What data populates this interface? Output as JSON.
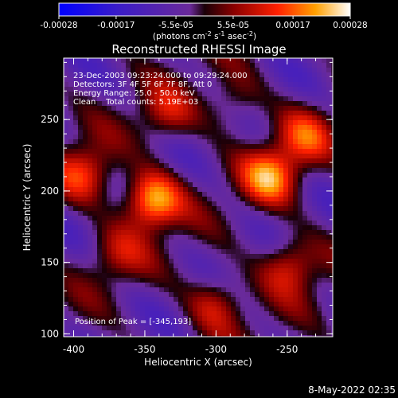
{
  "chart_data": {
    "type": "heatmap",
    "title": "Reconstructed RHESSI Image",
    "xlabel": "Heliocentric X (arcsec)",
    "ylabel": "Heliocentric Y (arcsec)",
    "xlim": [
      -407,
      -218
    ],
    "ylim": [
      98,
      293
    ],
    "xticks": [
      -400,
      -350,
      -300,
      -250
    ],
    "yticks": [
      100,
      150,
      200,
      250
    ],
    "colorbar": {
      "ticks": [
        "-0.00028",
        "-0.00017",
        "-5.5e-05",
        "5.5e-05",
        "0.00017",
        "0.00028"
      ],
      "tick_values": [
        -0.00028,
        -0.00017,
        -5.5e-05,
        5.5e-05,
        0.00017,
        0.00028
      ],
      "unit_prefix": "(photons cm",
      "unit_sup1": "-2",
      "unit_mid1": " s",
      "unit_sup2": "-1",
      "unit_mid2": " asec",
      "unit_sup3": "-2",
      "unit_suffix": ")",
      "range": [
        -0.00028,
        0.00028
      ]
    },
    "annotations": [
      "23-Dec-2003 09:23:24.000 to 09:29:24.000",
      "Detectors: 3F 4F 5F 6F 7F 8F, Att 0",
      "Energy Range: 25.0 - 50.0 keV",
      "Clean    Total counts: 5.19E+03"
    ],
    "peak_label": "Position of Peak = [-345,193]",
    "peak": [
      -345,
      193
    ],
    "sources": [
      {
        "x": -345,
        "y": 193,
        "value": 0.00028
      },
      {
        "x": -262,
        "y": 210,
        "value": 0.00022
      },
      {
        "x": -392,
        "y": 212,
        "value": 0.00018
      },
      {
        "x": -238,
        "y": 238,
        "value": 0.00015
      },
      {
        "x": -248,
        "y": 148,
        "value": 0.00016
      },
      {
        "x": -300,
        "y": 122,
        "value": 0.00014
      },
      {
        "x": -335,
        "y": 253,
        "value": 0.00012
      },
      {
        "x": -370,
        "y": 155,
        "value": 0.0001
      },
      {
        "x": -288,
        "y": 262,
        "value": 0.0001
      }
    ]
  },
  "timestamp": "8-May-2022 02:35"
}
